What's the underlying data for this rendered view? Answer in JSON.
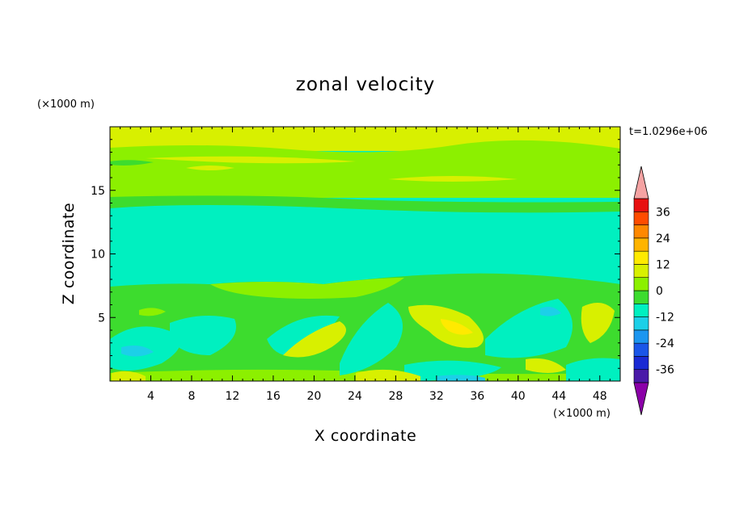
{
  "chart_data": {
    "type": "heatmap",
    "title": "zonal velocity",
    "xlabel": "X coordinate",
    "ylabel": "Z coordinate",
    "x_unit": "(×1000 m)",
    "y_unit": "(×1000 m)",
    "time_label": "t=1.0296e+06",
    "xlim": [
      0,
      50
    ],
    "ylim": [
      0,
      20
    ],
    "x_ticks": [
      4,
      8,
      12,
      16,
      20,
      24,
      28,
      32,
      36,
      40,
      44,
      48
    ],
    "y_ticks": [
      5,
      10,
      15
    ],
    "colorbar": {
      "levels": [
        -42,
        -36,
        -30,
        -24,
        -18,
        -12,
        -6,
        0,
        6,
        12,
        18,
        24,
        30,
        36,
        42
      ],
      "labels": [
        "36",
        "24",
        "12",
        "0",
        "-12",
        "-24",
        "-36"
      ],
      "label_values": [
        36,
        24,
        12,
        0,
        -12,
        -24,
        -36
      ],
      "under_color": "#8b00a8",
      "over_color": "#f5a3a3",
      "colors": [
        "#4a1aa8",
        "#1a2ad4",
        "#1a56e8",
        "#1c96f0",
        "#1cd0e8",
        "#00f0c0",
        "#3ddc2e",
        "#8cf000",
        "#d8f000",
        "#ffea00",
        "#ffb400",
        "#ff8800",
        "#ff4c00",
        "#e81010"
      ]
    },
    "bands": [
      {
        "z_range": [
          0.5,
          1.2
        ],
        "value": 10
      },
      {
        "z_range": [
          1.2,
          7.5
        ],
        "value": "-6 to 12 (wavy)"
      },
      {
        "z_range": [
          7.5,
          13.5
        ],
        "value": -6
      },
      {
        "z_range": [
          13.5,
          14.8
        ],
        "value": 3
      },
      {
        "z_range": [
          14.8,
          18.2
        ],
        "value": 9
      },
      {
        "z_range": [
          18.2,
          20
        ],
        "value": 13
      }
    ]
  }
}
